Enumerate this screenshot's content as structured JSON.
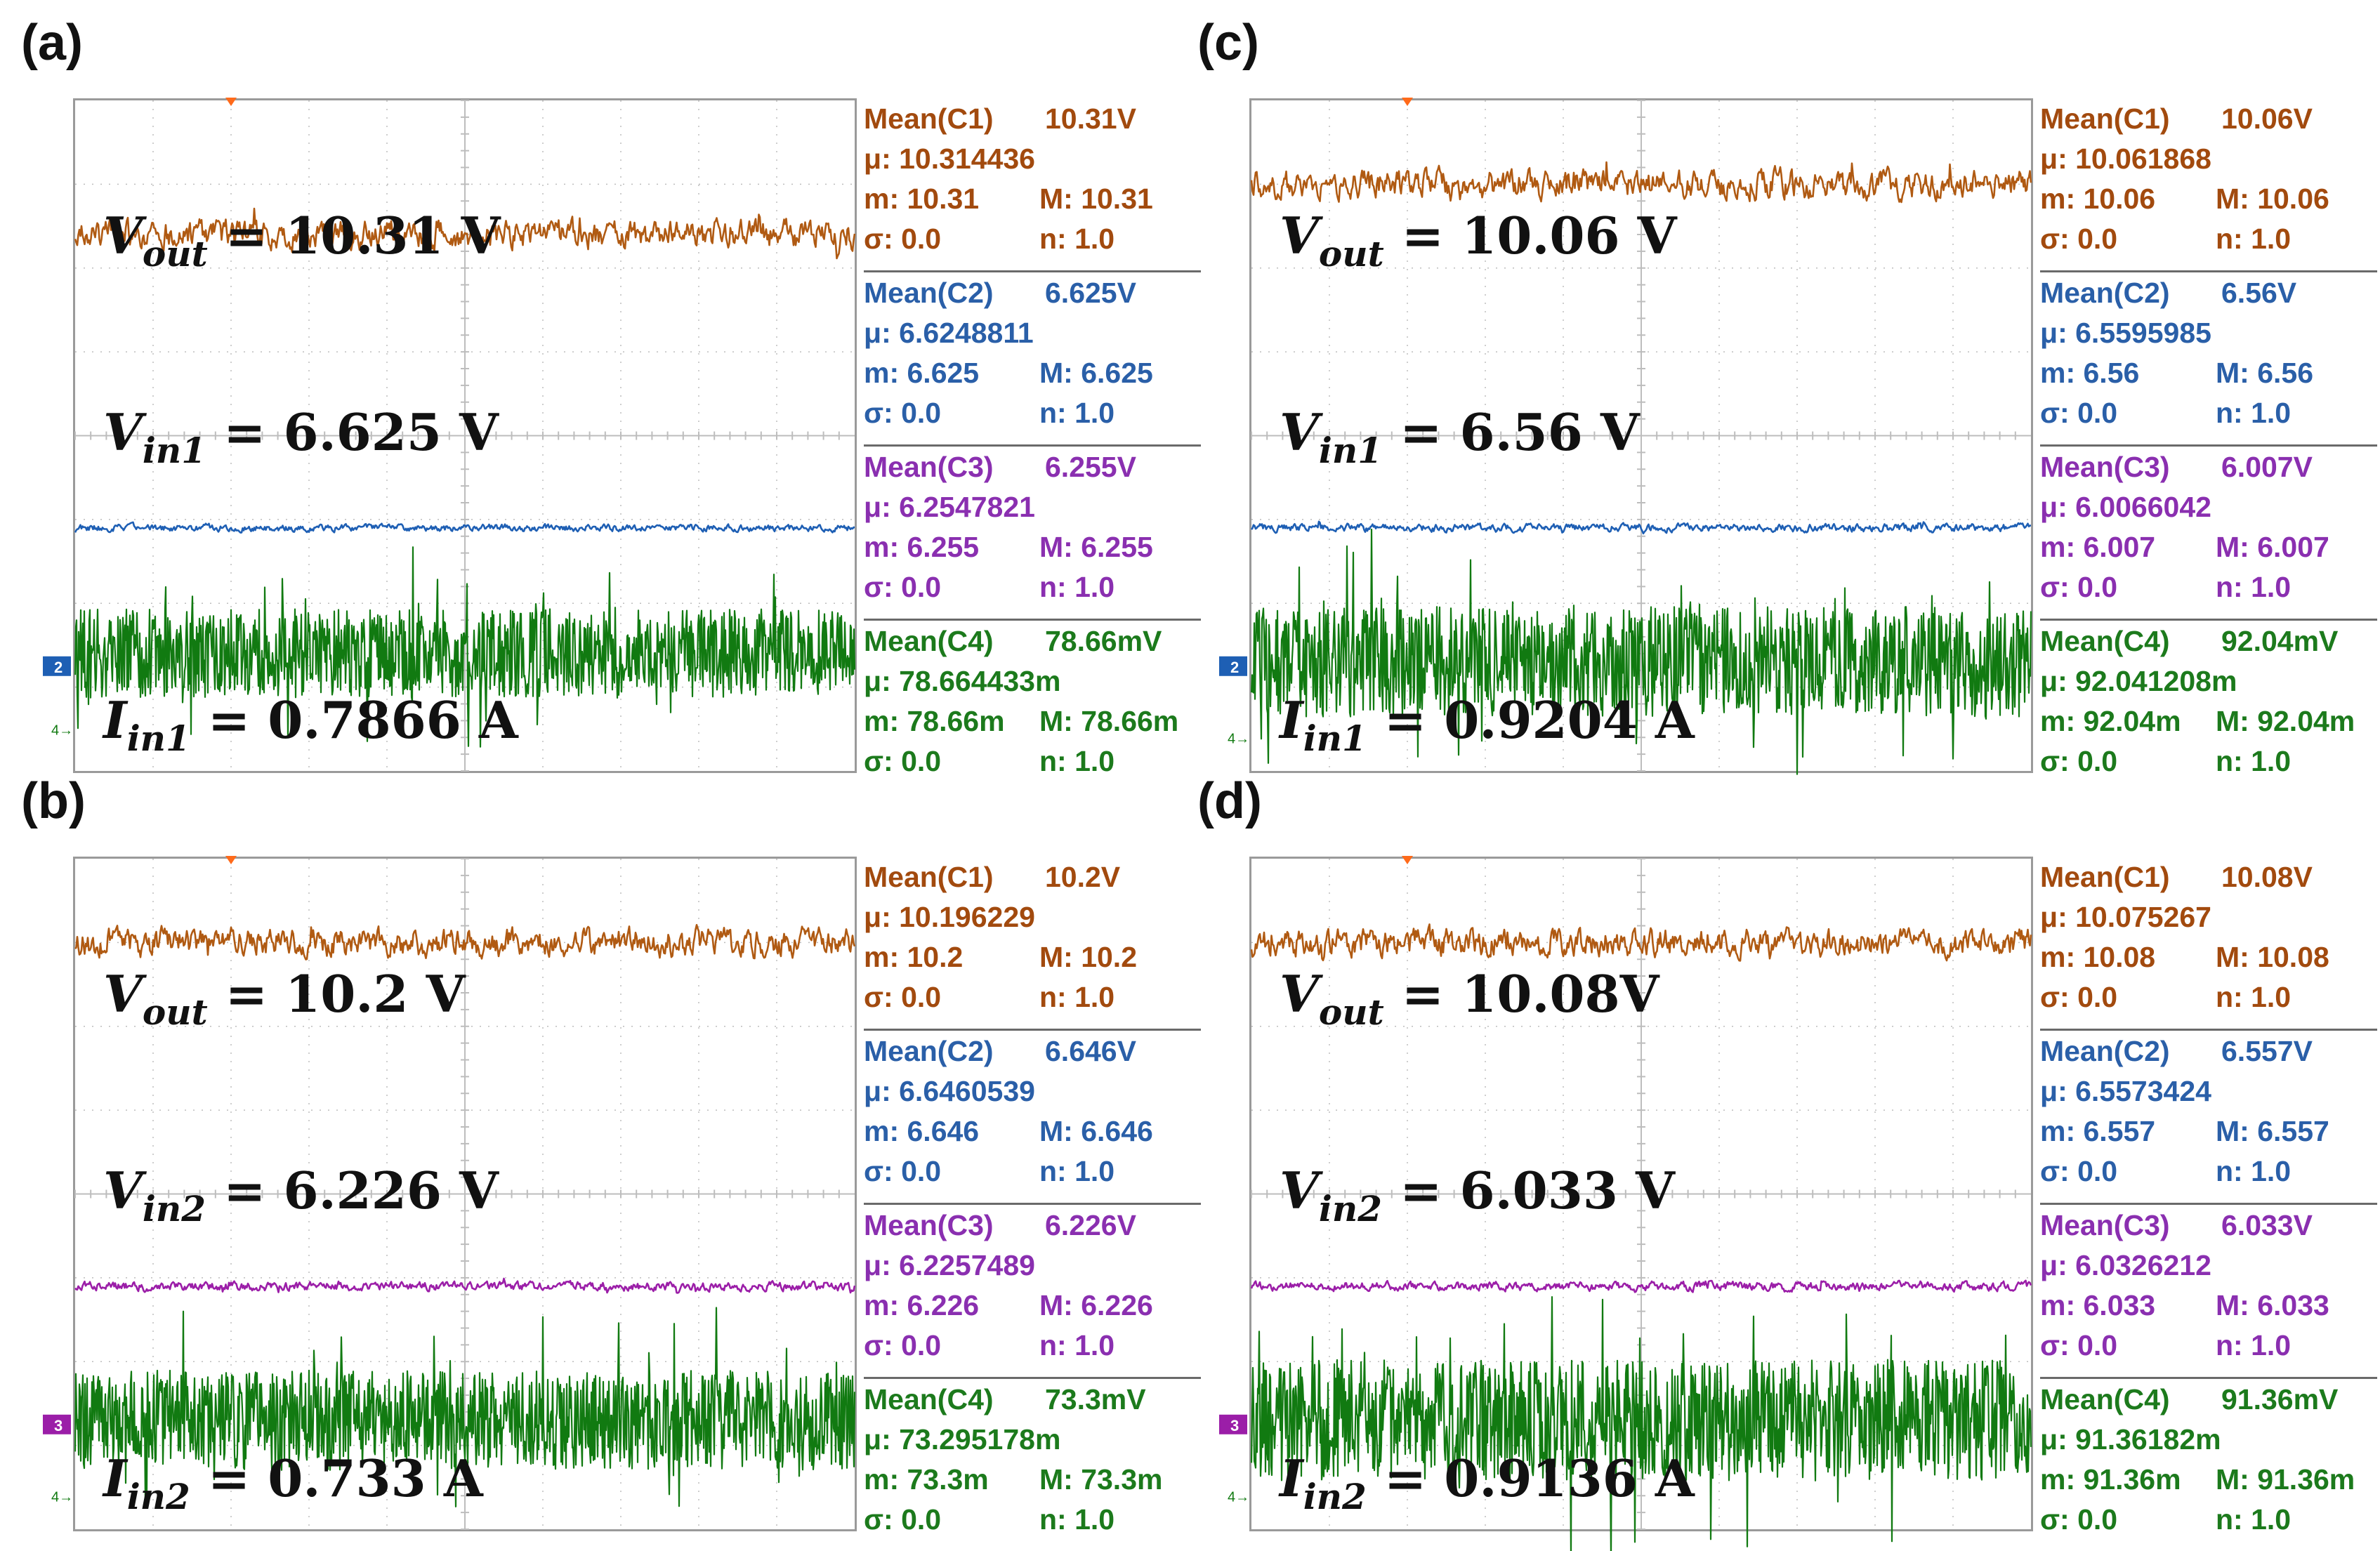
{
  "colors": {
    "ch1": "#b05a12",
    "ch2": "#1e5fb4",
    "ch3": "#9b1ea8",
    "ch4": "#117a11",
    "grid": "#bdbdbd",
    "trigger": "#ff6a1a"
  },
  "panels": [
    {
      "id": "a",
      "label": "(a)",
      "annotations": [
        {
          "var": "V",
          "sub": "out",
          "value": "= 10.31 V"
        },
        {
          "var": "V",
          "sub": "in1",
          "value": "= 6.625 V"
        },
        {
          "var": "I",
          "sub": "in1",
          "value": "= 0.7866 A"
        }
      ],
      "mid_channel": "ch2",
      "mid_marker": "2",
      "chart_data": {
        "type": "line",
        "title": "(a)",
        "series": [
          {
            "name": "C1 (V_out)",
            "color": "#b05a12",
            "level_div": 1.6,
            "noise_div": 0.28
          },
          {
            "name": "C2 (V_in1)",
            "color": "#1e5fb4",
            "level_div": 5.1,
            "noise_div": 0.07
          },
          {
            "name": "C4 (I_in1)",
            "color": "#117a11",
            "level_div": 6.6,
            "noise_div": 1.25
          }
        ],
        "xlabel": "",
        "ylabel": "",
        "grid": true
      },
      "measurements": [
        {
          "ch": "c1",
          "lines": [
            [
              "Mean(C1)",
              "10.31V"
            ],
            [
              "μ: 10.314436",
              ""
            ],
            [
              "m: 10.31",
              "M: 10.31"
            ],
            [
              "σ: 0.0",
              "n: 1.0"
            ]
          ]
        },
        {
          "ch": "c2",
          "lines": [
            [
              "Mean(C2)",
              "6.625V"
            ],
            [
              "μ: 6.6248811",
              ""
            ],
            [
              "m: 6.625",
              "M: 6.625"
            ],
            [
              "σ: 0.0",
              "n: 1.0"
            ]
          ]
        },
        {
          "ch": "c3",
          "lines": [
            [
              "Mean(C3)",
              "6.255V"
            ],
            [
              "μ: 6.2547821",
              ""
            ],
            [
              "m: 6.255",
              "M: 6.255"
            ],
            [
              "σ: 0.0",
              "n: 1.0"
            ]
          ]
        },
        {
          "ch": "c4",
          "lines": [
            [
              "Mean(C4)",
              "78.66mV"
            ],
            [
              "μ: 78.664433m",
              ""
            ],
            [
              "m: 78.66m",
              "M: 78.66m"
            ],
            [
              "σ: 0.0",
              "n: 1.0"
            ]
          ]
        }
      ]
    },
    {
      "id": "c",
      "label": "(c)",
      "annotations": [
        {
          "var": "V",
          "sub": "out",
          "value": "= 10.06 V"
        },
        {
          "var": "V",
          "sub": "in1",
          "value": "= 6.56 V"
        },
        {
          "var": "I",
          "sub": "in1",
          "value": "= 0.9204 A"
        }
      ],
      "mid_channel": "ch2",
      "mid_marker": "2",
      "chart_data": {
        "type": "line",
        "title": "(c)",
        "series": [
          {
            "name": "C1 (V_out)",
            "color": "#b05a12",
            "level_div": 1.0,
            "noise_div": 0.28
          },
          {
            "name": "C2 (V_in1)",
            "color": "#1e5fb4",
            "level_div": 5.1,
            "noise_div": 0.08
          },
          {
            "name": "C4 (I_in1)",
            "color": "#117a11",
            "level_div": 6.7,
            "noise_div": 1.55
          }
        ],
        "xlabel": "",
        "ylabel": "",
        "grid": true
      },
      "measurements": [
        {
          "ch": "c1",
          "lines": [
            [
              "Mean(C1)",
              "10.06V"
            ],
            [
              "μ: 10.061868",
              ""
            ],
            [
              "m: 10.06",
              "M: 10.06"
            ],
            [
              "σ: 0.0",
              "n: 1.0"
            ]
          ]
        },
        {
          "ch": "c2",
          "lines": [
            [
              "Mean(C2)",
              "6.56V"
            ],
            [
              "μ: 6.5595985",
              ""
            ],
            [
              "m: 6.56",
              "M: 6.56"
            ],
            [
              "σ: 0.0",
              "n: 1.0"
            ]
          ]
        },
        {
          "ch": "c3",
          "lines": [
            [
              "Mean(C3)",
              "6.007V"
            ],
            [
              "μ: 6.0066042",
              ""
            ],
            [
              "m: 6.007",
              "M: 6.007"
            ],
            [
              "σ: 0.0",
              "n: 1.0"
            ]
          ]
        },
        {
          "ch": "c4",
          "lines": [
            [
              "Mean(C4)",
              "92.04mV"
            ],
            [
              "μ: 92.041208m",
              ""
            ],
            [
              "m: 92.04m",
              "M: 92.04m"
            ],
            [
              "σ: 0.0",
              "n: 1.0"
            ]
          ]
        }
      ]
    },
    {
      "id": "b",
      "label": "(b)",
      "annotations": [
        {
          "var": "V",
          "sub": "out",
          "value": "= 10.2 V"
        },
        {
          "var": "V",
          "sub": "in2",
          "value": "= 6.226 V"
        },
        {
          "var": "I",
          "sub": "in2",
          "value": "= 0.733 A"
        }
      ],
      "mid_channel": "ch3",
      "mid_marker": "3",
      "chart_data": {
        "type": "line",
        "title": "(b)",
        "series": [
          {
            "name": "C1 (V_out)",
            "color": "#b05a12",
            "level_div": 1.0,
            "noise_div": 0.28
          },
          {
            "name": "C3 (V_in2)",
            "color": "#9b1ea8",
            "level_div": 5.1,
            "noise_div": 0.09
          },
          {
            "name": "C4 (I_in2)",
            "color": "#117a11",
            "level_div": 6.7,
            "noise_div": 1.4
          }
        ],
        "xlabel": "",
        "ylabel": "",
        "grid": true
      },
      "measurements": [
        {
          "ch": "c1",
          "lines": [
            [
              "Mean(C1)",
              "10.2V"
            ],
            [
              "μ: 10.196229",
              ""
            ],
            [
              "m: 10.2",
              "M: 10.2"
            ],
            [
              "σ: 0.0",
              "n: 1.0"
            ]
          ]
        },
        {
          "ch": "c2",
          "lines": [
            [
              "Mean(C2)",
              "6.646V"
            ],
            [
              "μ: 6.6460539",
              ""
            ],
            [
              "m: 6.646",
              "M: 6.646"
            ],
            [
              "σ: 0.0",
              "n: 1.0"
            ]
          ]
        },
        {
          "ch": "c3",
          "lines": [
            [
              "Mean(C3)",
              "6.226V"
            ],
            [
              "μ: 6.2257489",
              ""
            ],
            [
              "m: 6.226",
              "M: 6.226"
            ],
            [
              "σ: 0.0",
              "n: 1.0"
            ]
          ]
        },
        {
          "ch": "c4",
          "lines": [
            [
              "Mean(C4)",
              "73.3mV"
            ],
            [
              "μ: 73.295178m",
              ""
            ],
            [
              "m: 73.3m",
              "M: 73.3m"
            ],
            [
              "σ: 0.0",
              "n: 1.0"
            ]
          ]
        }
      ]
    },
    {
      "id": "d",
      "label": "(d)",
      "annotations": [
        {
          "var": "V",
          "sub": "out",
          "value": "= 10.08V"
        },
        {
          "var": "V",
          "sub": "in2",
          "value": "= 6.033 V"
        },
        {
          "var": "I",
          "sub": "in2",
          "value": "= 0.9136 A"
        }
      ],
      "mid_channel": "ch3",
      "mid_marker": "3",
      "chart_data": {
        "type": "line",
        "title": "(d)",
        "series": [
          {
            "name": "C1 (V_out)",
            "color": "#b05a12",
            "level_div": 1.0,
            "noise_div": 0.28
          },
          {
            "name": "C3 (V_in2)",
            "color": "#9b1ea8",
            "level_div": 5.1,
            "noise_div": 0.09
          },
          {
            "name": "C4 (I_in2)",
            "color": "#117a11",
            "level_div": 6.7,
            "noise_div": 1.7
          }
        ],
        "xlabel": "",
        "ylabel": "",
        "grid": true
      },
      "measurements": [
        {
          "ch": "c1",
          "lines": [
            [
              "Mean(C1)",
              "10.08V"
            ],
            [
              "μ: 10.075267",
              ""
            ],
            [
              "m: 10.08",
              "M: 10.08"
            ],
            [
              "σ: 0.0",
              "n: 1.0"
            ]
          ]
        },
        {
          "ch": "c2",
          "lines": [
            [
              "Mean(C2)",
              "6.557V"
            ],
            [
              "μ: 6.5573424",
              ""
            ],
            [
              "m: 6.557",
              "M: 6.557"
            ],
            [
              "σ: 0.0",
              "n: 1.0"
            ]
          ]
        },
        {
          "ch": "c3",
          "lines": [
            [
              "Mean(C3)",
              "6.033V"
            ],
            [
              "μ: 6.0326212",
              ""
            ],
            [
              "m: 6.033",
              "M: 6.033"
            ],
            [
              "σ: 0.0",
              "n: 1.0"
            ]
          ]
        },
        {
          "ch": "c4",
          "lines": [
            [
              "Mean(C4)",
              "91.36mV"
            ],
            [
              "μ: 91.36182m",
              ""
            ],
            [
              "m: 91.36m",
              "M: 91.36m"
            ],
            [
              "σ: 0.0",
              "n: 1.0"
            ]
          ]
        }
      ]
    }
  ]
}
